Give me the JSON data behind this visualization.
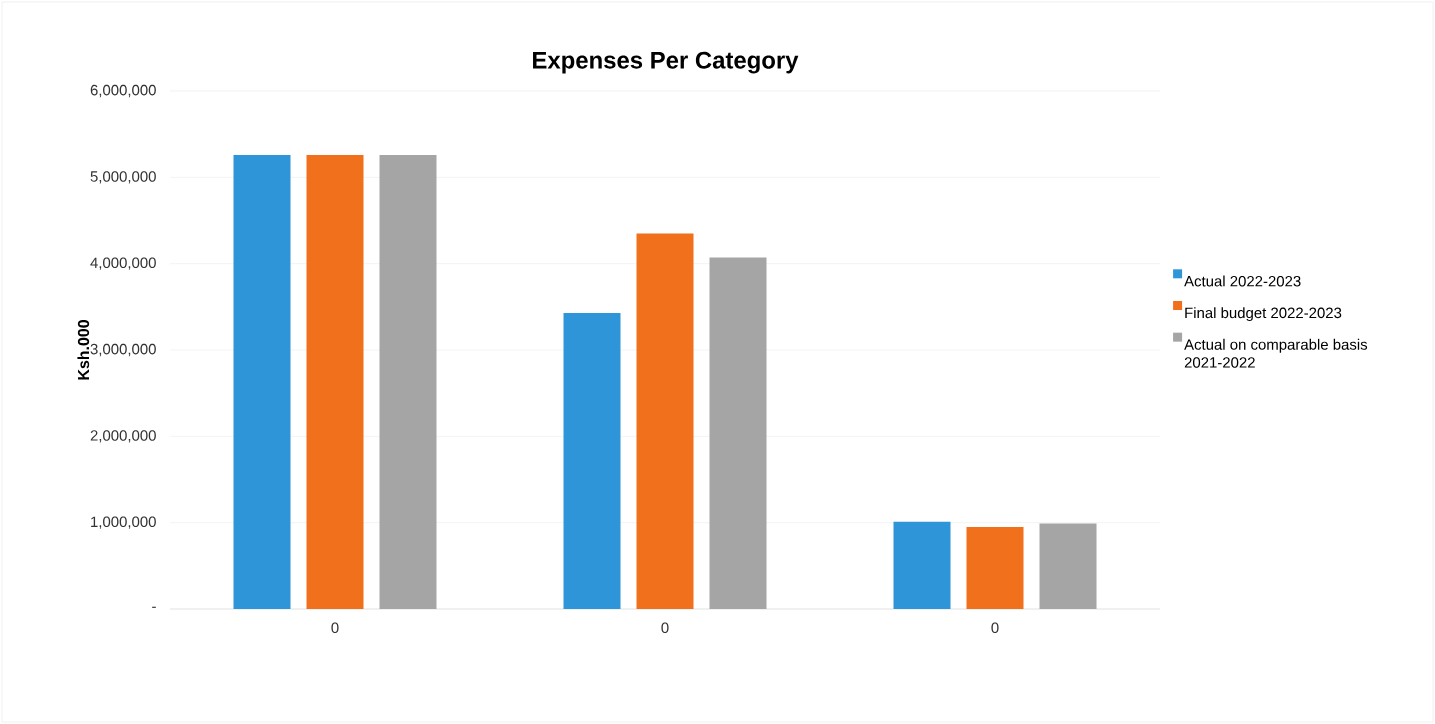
{
  "chart_data": {
    "type": "bar",
    "title": "Expenses Per Category",
    "ylabel": "Ksh.000",
    "categories": [
      "0",
      "0",
      "0"
    ],
    "series": [
      {
        "name": "Actual 2022-2023",
        "color": "#2e95d8",
        "values": [
          5260000,
          3430000,
          1010000
        ]
      },
      {
        "name": "Final budget 2022-2023",
        "color": "#f0701c",
        "values": [
          5260000,
          4350000,
          950000
        ]
      },
      {
        "name": "Actual on comparable basis 2021-2022",
        "color": "#a5a5a5",
        "values": [
          5260000,
          4070000,
          990000
        ]
      }
    ],
    "ylim": [
      0,
      6000000
    ],
    "yticks": [
      {
        "value": 0,
        "label": "-"
      },
      {
        "value": 1000000,
        "label": "1,000,000"
      },
      {
        "value": 2000000,
        "label": "2,000,000"
      },
      {
        "value": 3000000,
        "label": "3,000,000"
      },
      {
        "value": 4000000,
        "label": "4,000,000"
      },
      {
        "value": 5000000,
        "label": "5,000,000"
      },
      {
        "value": 6000000,
        "label": "6,000,000"
      }
    ],
    "grid": "y",
    "legend": "right"
  }
}
